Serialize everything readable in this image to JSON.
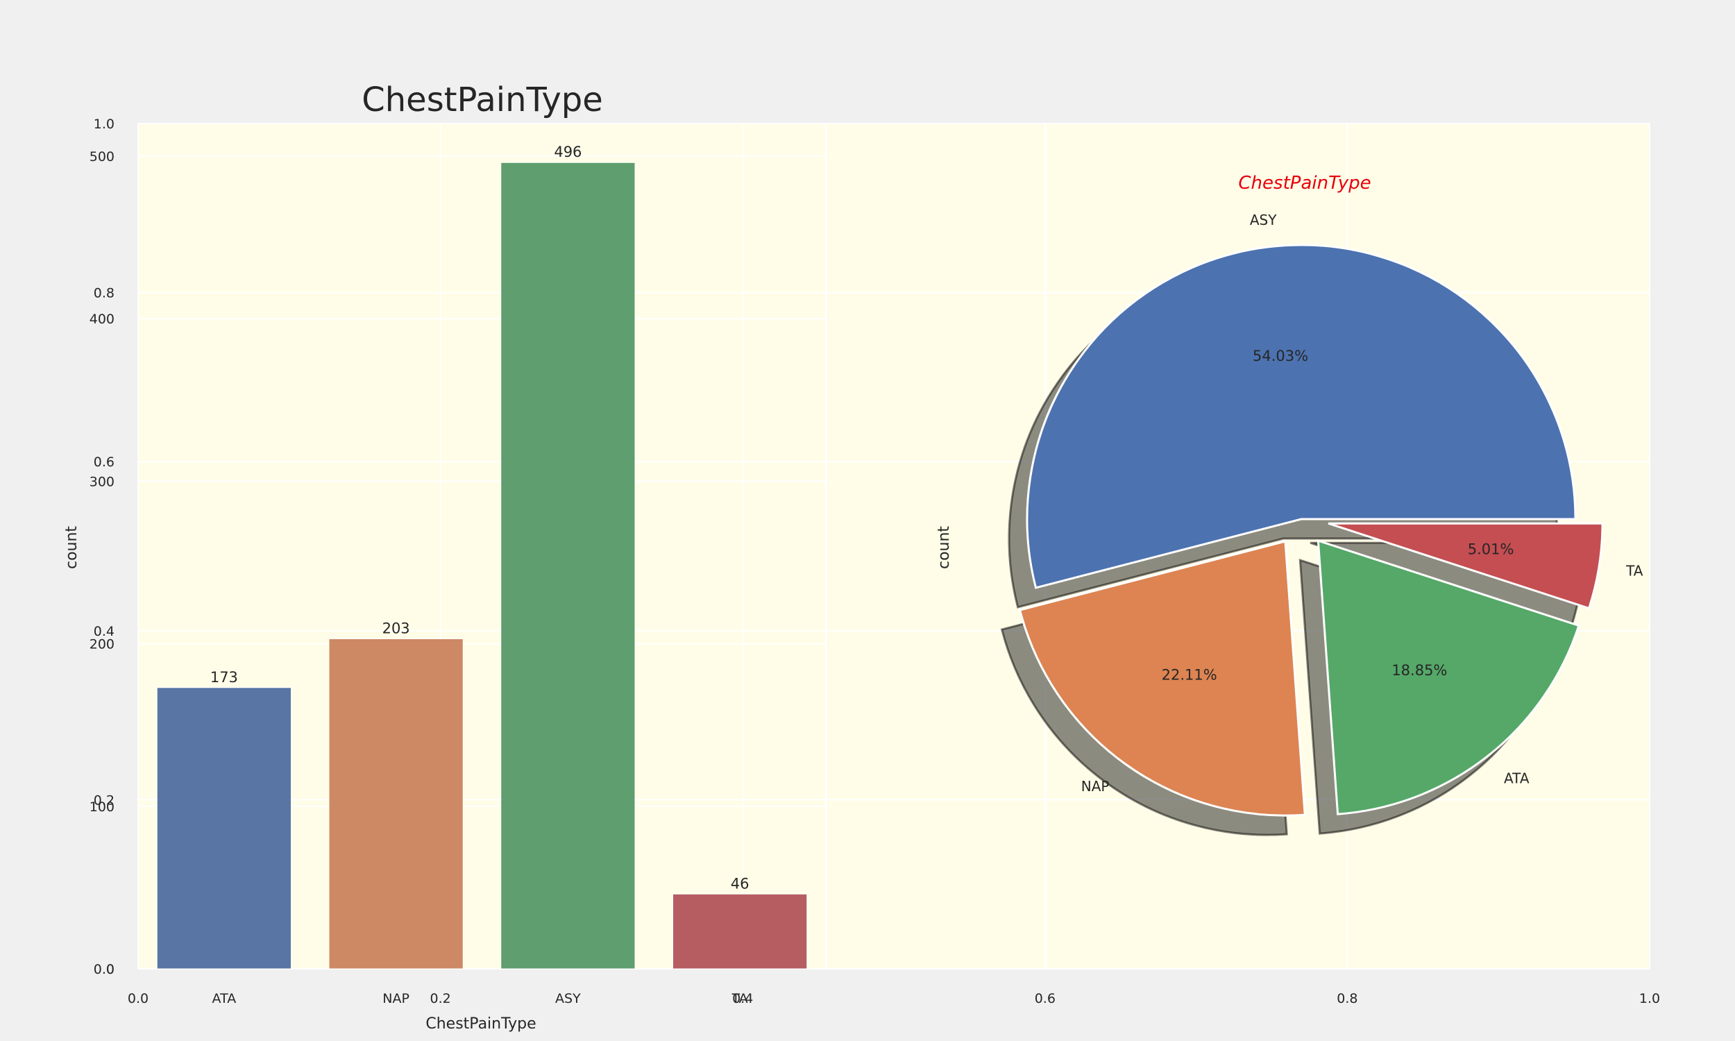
{
  "figure": {
    "background": "#f0f0f0",
    "axes_facecolor": "#fffde7",
    "grid_color": "#ffffff",
    "outer_axes": {
      "x_ticks": [
        "0.0",
        "0.2",
        "0.4",
        "0.6",
        "0.8",
        "1.0"
      ],
      "y_ticks": [
        "0.0",
        "0.2",
        "0.4",
        "0.6",
        "0.8",
        "1.0"
      ]
    }
  },
  "chart_data": [
    {
      "type": "bar",
      "title": "ChestPainType",
      "xlabel": "ChestPainType",
      "ylabel": "count",
      "categories": [
        "ATA",
        "NAP",
        "ASY",
        "TA"
      ],
      "values": [
        173,
        203,
        496,
        46
      ],
      "data_labels": [
        "173",
        "203",
        "496",
        "46"
      ],
      "colors": [
        "#5975a4",
        "#cc8963",
        "#5f9e6e",
        "#b55d60"
      ],
      "ylim": [
        0,
        520
      ],
      "yticks": [
        0,
        100,
        200,
        300,
        400,
        500
      ],
      "grid": true
    },
    {
      "type": "pie",
      "title": "ChestPainType",
      "title_color": "#e8000b",
      "ylabel": "count",
      "slices": [
        {
          "label": "ASY",
          "value": 54.03,
          "pct_label": "54.03%",
          "color": "#4c72b0",
          "explode": 0
        },
        {
          "label": "NAP",
          "value": 22.11,
          "pct_label": "22.11%",
          "color": "#dd8452",
          "explode": 0.1
        },
        {
          "label": "ATA",
          "value": 18.85,
          "pct_label": "18.85%",
          "color": "#55a868",
          "explode": 0.1
        },
        {
          "label": "TA",
          "value": 5.01,
          "pct_label": "5.01%",
          "color": "#c44e52",
          "explode": 0.1
        }
      ],
      "start_angle": 0,
      "shadow": true,
      "grid": true
    }
  ]
}
